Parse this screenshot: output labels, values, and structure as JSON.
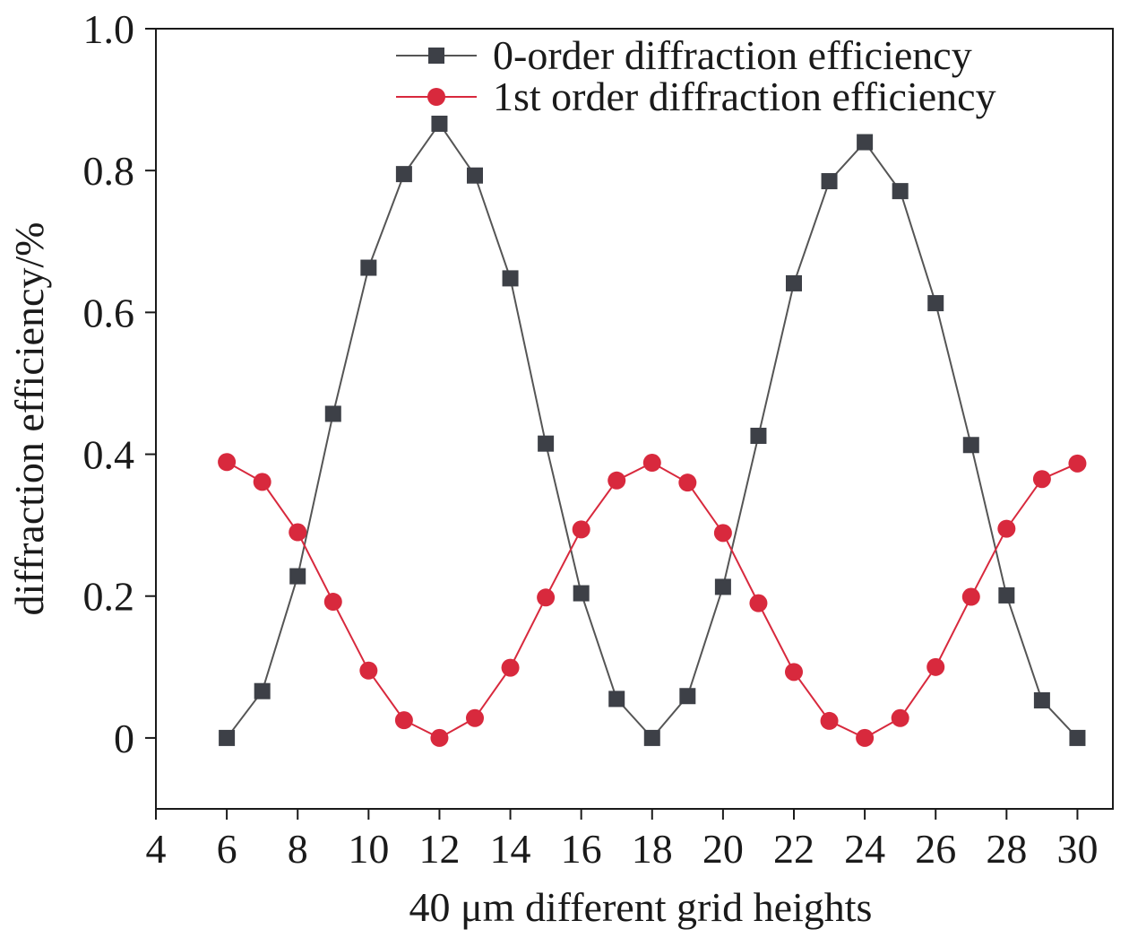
{
  "chart_data": {
    "type": "line",
    "xlabel": "40 μm different grid heights",
    "ylabel": "diffraction efficiency/%",
    "xlim": [
      4,
      31
    ],
    "ylim": [
      -0.1,
      1.0
    ],
    "x_ticks": [
      "4",
      "6",
      "8",
      "10",
      "12",
      "14",
      "16",
      "18",
      "20",
      "22",
      "24",
      "26",
      "28",
      "30"
    ],
    "y_ticks": [
      "0",
      "0.2",
      "0.4",
      "0.6",
      "0.8",
      "1.0"
    ],
    "grid": false,
    "legend_position": "top-right",
    "x": [
      6,
      7,
      8,
      9,
      10,
      11,
      12,
      13,
      14,
      15,
      16,
      17,
      18,
      19,
      20,
      21,
      22,
      23,
      24,
      25,
      26,
      27,
      28,
      29,
      30
    ],
    "series": [
      {
        "name": "0-order diffraction efficiency",
        "marker": "square",
        "color": "#3d4047",
        "line_color": "#555555",
        "values": [
          0.0,
          0.066,
          0.228,
          0.457,
          0.663,
          0.795,
          0.866,
          0.793,
          0.648,
          0.415,
          0.204,
          0.055,
          0.0,
          0.059,
          0.213,
          0.426,
          0.641,
          0.785,
          0.84,
          0.771,
          0.613,
          0.413,
          0.201,
          0.053,
          0.0
        ]
      },
      {
        "name": "1st order diffraction efficiency",
        "marker": "circle",
        "color": "#d8293d",
        "line_color": "#d8293d",
        "values": [
          0.389,
          0.361,
          0.29,
          0.192,
          0.095,
          0.025,
          0.0,
          0.028,
          0.099,
          0.198,
          0.294,
          0.363,
          0.388,
          0.36,
          0.289,
          0.19,
          0.093,
          0.024,
          0.0,
          0.028,
          0.1,
          0.199,
          0.295,
          0.365,
          0.387
        ]
      }
    ]
  }
}
